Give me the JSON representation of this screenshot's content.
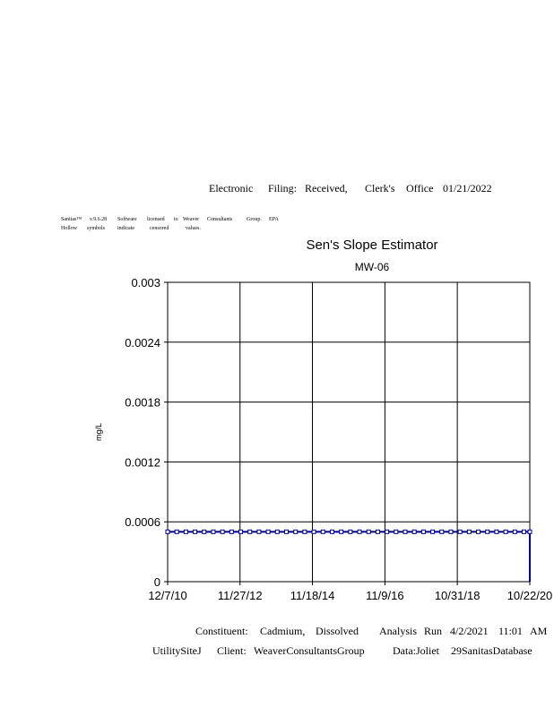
{
  "header": {
    "words": [
      "Electronic",
      "Filing:",
      "Received,",
      "Clerk's",
      "Office",
      "01/21/2022"
    ]
  },
  "notice": {
    "line1": [
      "Sanitas™",
      "v.9.6.28",
      "Software",
      "licensed",
      "to",
      "Weaver",
      "Consultants",
      "Group.",
      "EPA"
    ],
    "line2": [
      "Hollow",
      "symbols",
      "indicate",
      "censored",
      "values."
    ]
  },
  "footer": {
    "line1": [
      "Constituent:",
      "Cadmium,",
      "Dissolved",
      "Analysis",
      "Run",
      "4/2/2021",
      "11:01",
      "AM"
    ],
    "line2": [
      "UtilitySiteJ",
      "Client:",
      "WeaverConsultantsGroup",
      "Data:Joliet",
      "29SanitasDatabase"
    ]
  },
  "chart_data": {
    "type": "line",
    "title": "Sen's Slope Estimator",
    "subtitle": "MW-06",
    "xlabel": "",
    "ylabel": "mg/L",
    "ylim": [
      0,
      0.003
    ],
    "yticks": [
      "0",
      "0.0006",
      "0.0012",
      "0.0018",
      "0.0024",
      "0.003"
    ],
    "xlim": [
      "2010-12-07",
      "2020-10-22"
    ],
    "xticks": [
      {
        "date": "2010-12-07",
        "label": "12/7/10"
      },
      {
        "date": "2012-11-27",
        "label": "11/27/12"
      },
      {
        "date": "2014-11-18",
        "label": "11/18/14"
      },
      {
        "date": "2016-11-09",
        "label": "11/9/16"
      },
      {
        "date": "2018-10-31",
        "label": "10/31/18"
      },
      {
        "date": "2020-10-22",
        "label": "10/22/20"
      }
    ],
    "grid": true,
    "color": "#000080",
    "series": [
      {
        "marker": "hollow-square",
        "censored": true,
        "x": [
          "2010-12-07",
          "2011-03-08",
          "2011-06-07",
          "2011-09-06",
          "2011-12-06",
          "2012-03-06",
          "2012-06-05",
          "2012-09-04",
          "2012-12-04",
          "2013-03-05",
          "2013-06-04",
          "2013-09-03",
          "2013-12-03",
          "2014-03-04",
          "2014-06-03",
          "2014-09-02",
          "2014-12-02",
          "2015-03-03",
          "2015-06-02",
          "2015-09-01",
          "2015-12-01",
          "2016-03-01",
          "2016-05-31",
          "2016-08-30",
          "2016-11-29",
          "2017-02-28",
          "2017-05-30",
          "2017-08-29",
          "2017-11-28",
          "2018-02-27",
          "2018-05-29",
          "2018-08-28",
          "2018-11-27",
          "2019-02-26",
          "2019-05-28",
          "2019-08-27",
          "2019-11-26",
          "2020-02-25",
          "2020-05-26",
          "2020-08-25",
          "2020-10-22"
        ],
        "y": 0.0005
      },
      {
        "kind": "trend-line",
        "points": [
          [
            "2010-12-07",
            0.0005
          ],
          [
            "2020-10-22",
            0.0005
          ],
          [
            "2020-10-22",
            0
          ]
        ]
      }
    ]
  }
}
